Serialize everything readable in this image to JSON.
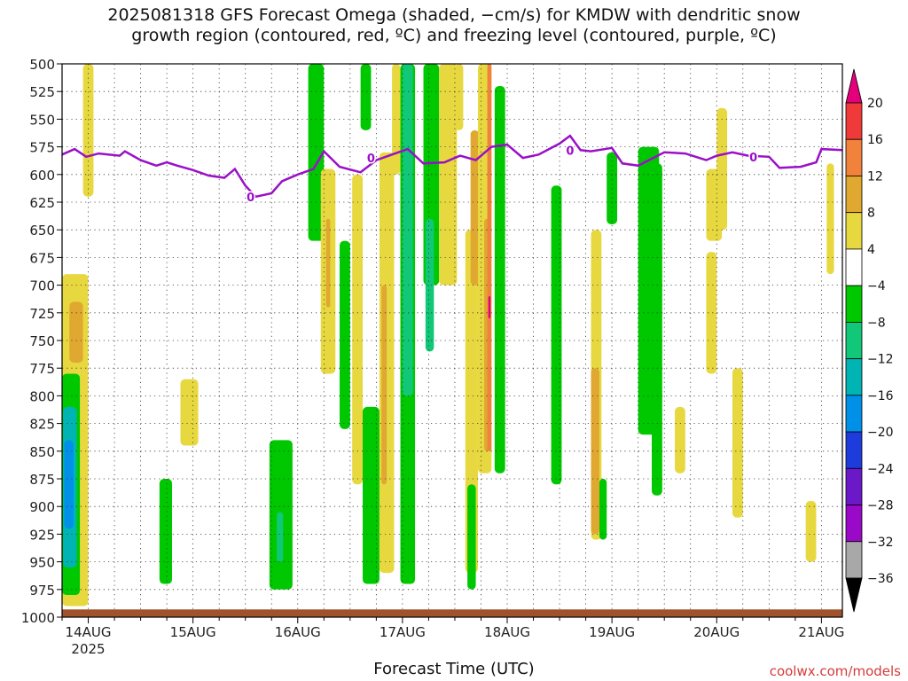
{
  "title": "2025081318 GFS Forecast Omega (shaded, −cm/s) for KMDW with dendritic snow\ngrowth region (contoured, red, ºC) and freezing level (contoured, purple, ºC)",
  "xlabel": "Forecast Time (UTC)",
  "credit": "coolwx.com/models",
  "chart_data": {
    "type": "heatmap",
    "title": "2025081318 GFS Forecast Omega (shaded, −cm/s) for KMDW with dendritic snow growth region (contoured, red, ºC) and freezing level (contoured, purple, ºC)",
    "xlabel": "Forecast Time (UTC)",
    "ylabel": "",
    "y_axis": "pressure (hPa), inverted",
    "ylim": [
      1000,
      500
    ],
    "y_ticks": [
      "500",
      "525",
      "550",
      "575",
      "600",
      "625",
      "650",
      "675",
      "700",
      "725",
      "750",
      "775",
      "800",
      "825",
      "850",
      "875",
      "900",
      "925",
      "950",
      "975",
      "1000"
    ],
    "x_range_days": [
      13.75,
      21.2
    ],
    "x_ticks": [
      {
        "label": "14AUG",
        "sub": "2025",
        "day": 14
      },
      {
        "label": "15AUG",
        "sub": "",
        "day": 15
      },
      {
        "label": "16AUG",
        "sub": "",
        "day": 16
      },
      {
        "label": "17AUG",
        "sub": "",
        "day": 17
      },
      {
        "label": "18AUG",
        "sub": "",
        "day": 18
      },
      {
        "label": "19AUG",
        "sub": "",
        "day": 19
      },
      {
        "label": "20AUG",
        "sub": "",
        "day": 20
      },
      {
        "label": "21AUG",
        "sub": "",
        "day": 21
      }
    ],
    "colorbar": {
      "labels": [
        "20",
        "16",
        "12",
        "8",
        "4",
        "−4",
        "−8",
        "−12",
        "−16",
        "−20",
        "−24",
        "−28",
        "−32",
        "−36"
      ],
      "colors": [
        "#e4007a",
        "#f03a3a",
        "#f0823c",
        "#e0a830",
        "#e8d840",
        "#ffffff",
        "#00c800",
        "#10c878",
        "#00b4b4",
        "#0090e8",
        "#1e3cdc",
        "#6a18c8",
        "#9a08c8",
        "#a8a8a8",
        "#000000"
      ]
    },
    "freezing_level": {
      "label": "0",
      "color": "#9a10c8",
      "points": [
        [
          13.75,
          582
        ],
        [
          13.87,
          577
        ],
        [
          13.98,
          584
        ],
        [
          14.1,
          581
        ],
        [
          14.3,
          583
        ],
        [
          14.35,
          579
        ],
        [
          14.5,
          587
        ],
        [
          14.65,
          592
        ],
        [
          14.75,
          589
        ],
        [
          14.85,
          592
        ],
        [
          15.0,
          596
        ],
        [
          15.15,
          601
        ],
        [
          15.3,
          603
        ],
        [
          15.4,
          595
        ],
        [
          15.5,
          610
        ],
        [
          15.6,
          620
        ],
        [
          15.75,
          617
        ],
        [
          15.85,
          606
        ],
        [
          16.0,
          600
        ],
        [
          16.15,
          595
        ],
        [
          16.25,
          579
        ],
        [
          16.4,
          593
        ],
        [
          16.6,
          598
        ],
        [
          16.75,
          587
        ],
        [
          16.9,
          582
        ],
        [
          17.05,
          577
        ],
        [
          17.2,
          590
        ],
        [
          17.4,
          589
        ],
        [
          17.55,
          583
        ],
        [
          17.7,
          587
        ],
        [
          17.85,
          575
        ],
        [
          18.0,
          573
        ],
        [
          18.15,
          585
        ],
        [
          18.3,
          582
        ],
        [
          18.5,
          572
        ],
        [
          18.6,
          565
        ],
        [
          18.7,
          578
        ],
        [
          18.8,
          579
        ],
        [
          19.0,
          576
        ],
        [
          19.1,
          590
        ],
        [
          19.25,
          592
        ],
        [
          19.5,
          580
        ],
        [
          19.7,
          581
        ],
        [
          19.9,
          587
        ],
        [
          20.0,
          583
        ],
        [
          20.15,
          580
        ],
        [
          20.3,
          583
        ],
        [
          20.5,
          584
        ],
        [
          20.6,
          594
        ],
        [
          20.8,
          593
        ],
        [
          20.95,
          589
        ],
        [
          21.0,
          577
        ],
        [
          21.2,
          578
        ]
      ],
      "contour_labels": [
        [
          15.55,
          620
        ],
        [
          16.7,
          585
        ],
        [
          18.6,
          578
        ],
        [
          20.35,
          584
        ]
      ]
    },
    "shaded_regions": [
      {
        "value": 4,
        "day_start": 13.95,
        "day_end": 14.05,
        "p_top": 500,
        "p_bottom": 620
      },
      {
        "value": 4,
        "day_start": 13.75,
        "day_end": 14.0,
        "p_top": 690,
        "p_bottom": 990
      },
      {
        "value": 8,
        "day_start": 13.82,
        "day_end": 13.95,
        "p_top": 715,
        "p_bottom": 770
      },
      {
        "value": -8,
        "day_start": 13.75,
        "day_end": 13.92,
        "p_top": 780,
        "p_bottom": 980
      },
      {
        "value": -16,
        "day_start": 13.76,
        "day_end": 13.89,
        "p_top": 810,
        "p_bottom": 955
      },
      {
        "value": -20,
        "day_start": 13.77,
        "day_end": 13.86,
        "p_top": 840,
        "p_bottom": 920
      },
      {
        "value": 4,
        "day_start": 14.88,
        "day_end": 15.05,
        "p_top": 785,
        "p_bottom": 845
      },
      {
        "value": -8,
        "day_start": 14.68,
        "day_end": 14.8,
        "p_top": 875,
        "p_bottom": 970
      },
      {
        "value": -8,
        "day_start": 15.73,
        "day_end": 15.95,
        "p_top": 840,
        "p_bottom": 975
      },
      {
        "value": -12,
        "day_start": 15.8,
        "day_end": 15.86,
        "p_top": 905,
        "p_bottom": 950
      },
      {
        "value": -8,
        "day_start": 16.1,
        "day_end": 16.25,
        "p_top": 500,
        "p_bottom": 660
      },
      {
        "value": 4,
        "day_start": 16.22,
        "day_end": 16.36,
        "p_top": 595,
        "p_bottom": 780
      },
      {
        "value": 8,
        "day_start": 16.27,
        "day_end": 16.31,
        "p_top": 640,
        "p_bottom": 720
      },
      {
        "value": -8,
        "day_start": 16.4,
        "day_end": 16.5,
        "p_top": 660,
        "p_bottom": 830
      },
      {
        "value": 4,
        "day_start": 16.52,
        "day_end": 16.62,
        "p_top": 600,
        "p_bottom": 880
      },
      {
        "value": -8,
        "day_start": 16.62,
        "day_end": 16.78,
        "p_top": 810,
        "p_bottom": 970
      },
      {
        "value": 4,
        "day_start": 16.78,
        "day_end": 16.92,
        "p_top": 580,
        "p_bottom": 960
      },
      {
        "value": 8,
        "day_start": 16.8,
        "day_end": 16.85,
        "p_top": 700,
        "p_bottom": 880
      },
      {
        "value": 4,
        "day_start": 16.9,
        "day_end": 16.98,
        "p_top": 500,
        "p_bottom": 600
      },
      {
        "value": -8,
        "day_start": 16.98,
        "day_end": 17.12,
        "p_top": 500,
        "p_bottom": 970
      },
      {
        "value": -12,
        "day_start": 17.0,
        "day_end": 17.1,
        "p_top": 500,
        "p_bottom": 800
      },
      {
        "value": -8,
        "day_start": 17.2,
        "day_end": 17.35,
        "p_top": 500,
        "p_bottom": 700
      },
      {
        "value": -12,
        "day_start": 17.22,
        "day_end": 17.3,
        "p_top": 640,
        "p_bottom": 760
      },
      {
        "value": 4,
        "day_start": 17.35,
        "day_end": 17.52,
        "p_top": 500,
        "p_bottom": 700
      },
      {
        "value": 4,
        "day_start": 17.6,
        "day_end": 17.72,
        "p_top": 650,
        "p_bottom": 960
      },
      {
        "value": -8,
        "day_start": 17.62,
        "day_end": 17.7,
        "p_top": 880,
        "p_bottom": 975
      },
      {
        "value": 8,
        "day_start": 17.65,
        "day_end": 17.73,
        "p_top": 560,
        "p_bottom": 700
      },
      {
        "value": 4,
        "day_start": 17.72,
        "day_end": 17.85,
        "p_top": 500,
        "p_bottom": 870
      },
      {
        "value": 8,
        "day_start": 17.78,
        "day_end": 17.84,
        "p_top": 640,
        "p_bottom": 850
      },
      {
        "value": 12,
        "day_start": 17.81,
        "day_end": 17.85,
        "p_top": 500,
        "p_bottom": 850
      },
      {
        "value": 20,
        "day_start": 17.82,
        "day_end": 17.84,
        "p_top": 710,
        "p_bottom": 730
      },
      {
        "value": -8,
        "day_start": 17.88,
        "day_end": 17.98,
        "p_top": 520,
        "p_bottom": 870
      },
      {
        "value": -8,
        "day_start": 18.42,
        "day_end": 18.52,
        "p_top": 610,
        "p_bottom": 880
      },
      {
        "value": 4,
        "day_start": 18.8,
        "day_end": 18.9,
        "p_top": 650,
        "p_bottom": 930
      },
      {
        "value": 8,
        "day_start": 18.8,
        "day_end": 18.88,
        "p_top": 775,
        "p_bottom": 925
      },
      {
        "value": -8,
        "day_start": 18.88,
        "day_end": 18.95,
        "p_top": 875,
        "p_bottom": 930
      },
      {
        "value": -8,
        "day_start": 18.95,
        "day_end": 19.05,
        "p_top": 580,
        "p_bottom": 645
      },
      {
        "value": -8,
        "day_start": 19.25,
        "day_end": 19.45,
        "p_top": 575,
        "p_bottom": 835
      },
      {
        "value": -8,
        "day_start": 19.38,
        "day_end": 19.48,
        "p_top": 590,
        "p_bottom": 890
      },
      {
        "value": 4,
        "day_start": 19.6,
        "day_end": 19.7,
        "p_top": 810,
        "p_bottom": 870
      },
      {
        "value": 4,
        "day_start": 19.9,
        "day_end": 20.05,
        "p_top": 595,
        "p_bottom": 660
      },
      {
        "value": 4,
        "day_start": 20.0,
        "day_end": 20.1,
        "p_top": 540,
        "p_bottom": 650
      },
      {
        "value": 4,
        "day_start": 19.9,
        "day_end": 20.0,
        "p_top": 670,
        "p_bottom": 780
      },
      {
        "value": 4,
        "day_start": 20.15,
        "day_end": 20.25,
        "p_top": 775,
        "p_bottom": 910
      },
      {
        "value": 4,
        "day_start": 20.85,
        "day_end": 20.95,
        "p_top": 895,
        "p_bottom": 950
      },
      {
        "value": 4,
        "day_start": 21.05,
        "day_end": 21.12,
        "p_top": 590,
        "p_bottom": 690
      },
      {
        "value": -8,
        "day_start": 16.6,
        "day_end": 16.7,
        "p_top": 500,
        "p_bottom": 560
      },
      {
        "value": 4,
        "day_start": 17.5,
        "day_end": 17.58,
        "p_top": 500,
        "p_bottom": 560
      }
    ],
    "surface_strip": {
      "color": "#a0522d",
      "p_top": 993,
      "p_bottom": 1000
    },
    "grid": true
  }
}
